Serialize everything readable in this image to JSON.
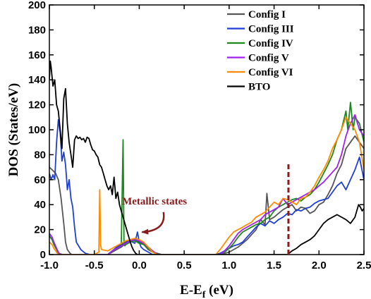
{
  "chart_data": {
    "type": "line",
    "xlabel_main": "E-E",
    "xlabel_sub": "f",
    "xlabel_unit": " (eV)",
    "ylabel": "DOS (States/eV)",
    "xlim": [
      -1.0,
      2.5
    ],
    "ylim": [
      0,
      200
    ],
    "xticks": [
      -1.0,
      -0.5,
      0.0,
      0.5,
      1.0,
      1.5,
      2.0,
      2.5
    ],
    "xtick_labels": [
      "-1.0",
      "-0.5",
      "0.0",
      "0.5",
      "1.0",
      "1.5",
      "2.0",
      "2.5"
    ],
    "yticks": [
      0,
      20,
      40,
      60,
      80,
      100,
      120,
      140,
      160,
      180,
      200
    ],
    "ytick_labels": [
      "0",
      "20",
      "40",
      "60",
      "80",
      "100",
      "120",
      "140",
      "160",
      "180",
      "200"
    ],
    "grid": false,
    "legend_position": "top-right",
    "vline": {
      "x": 1.66,
      "y_top": 74,
      "color": "#8b1a1a",
      "style": "dashed"
    },
    "annotation": {
      "text": "Metallic states",
      "color": "#8b1a1a",
      "text_x": 0.17,
      "text_y": 40,
      "arrow_from": [
        0.27,
        34
      ],
      "arrow_to": [
        0.03,
        18
      ]
    },
    "series": [
      {
        "name": "Config I",
        "color": "#555555",
        "x": [
          -1.0,
          -0.97,
          -0.93,
          -0.9,
          -0.87,
          -0.84,
          -0.82,
          -0.8,
          -0.77,
          -0.75,
          -0.5,
          -0.35,
          -0.3,
          -0.25,
          -0.2,
          -0.15,
          -0.1,
          -0.05,
          0.0,
          0.05,
          0.1,
          0.15,
          0.2,
          0.25,
          0.3,
          0.8,
          0.9,
          1.0,
          1.1,
          1.2,
          1.3,
          1.35,
          1.4,
          1.42,
          1.45,
          1.5,
          1.55,
          1.6,
          1.65,
          1.7,
          1.75,
          1.8,
          1.85,
          1.9,
          1.95,
          2.0,
          2.05,
          2.1,
          2.15,
          2.2,
          2.25,
          2.3,
          2.35,
          2.4,
          2.45,
          2.5
        ],
        "y": [
          70,
          68,
          65,
          60,
          45,
          25,
          10,
          4,
          1,
          0,
          0,
          0,
          2,
          4,
          6,
          9,
          11,
          12,
          10,
          8,
          4,
          2,
          1,
          0,
          0,
          0,
          0,
          2,
          6,
          12,
          20,
          28,
          24,
          49,
          28,
          30,
          33,
          36,
          38,
          40,
          35,
          38,
          37,
          33,
          35,
          40,
          42,
          48,
          55,
          65,
          72,
          85,
          90,
          95,
          90,
          85
        ]
      },
      {
        "name": "Config III",
        "color": "#1f3fd6",
        "x": [
          -1.0,
          -0.98,
          -0.96,
          -0.94,
          -0.92,
          -0.9,
          -0.88,
          -0.86,
          -0.84,
          -0.82,
          -0.8,
          -0.78,
          -0.76,
          -0.74,
          -0.72,
          -0.7,
          -0.65,
          -0.6,
          -0.55,
          -0.5,
          -0.35,
          -0.3,
          -0.25,
          -0.2,
          -0.15,
          -0.1,
          -0.05,
          -0.02,
          0.0,
          0.02,
          0.05,
          0.1,
          0.15,
          0.5,
          0.85,
          0.9,
          0.95,
          1.0,
          1.05,
          1.1,
          1.15,
          1.2,
          1.25,
          1.3,
          1.35,
          1.4,
          1.45,
          1.5,
          1.55,
          1.6,
          1.65,
          1.7,
          1.75,
          1.8,
          1.85,
          1.9,
          1.95,
          2.0,
          2.05,
          2.1,
          2.15,
          2.2,
          2.25,
          2.3,
          2.35,
          2.4,
          2.45,
          2.5
        ],
        "y": [
          65,
          60,
          64,
          60,
          90,
          108,
          98,
          75,
          82,
          72,
          52,
          60,
          45,
          38,
          22,
          10,
          4,
          1,
          0,
          0,
          0,
          3,
          6,
          8,
          10,
          11,
          9,
          18,
          10,
          6,
          4,
          2,
          0,
          0,
          0,
          1,
          3,
          5,
          7,
          8,
          10,
          14,
          18,
          22,
          25,
          23,
          27,
          25,
          28,
          30,
          33,
          32,
          36,
          35,
          37,
          38,
          41,
          43,
          44,
          45,
          50,
          55,
          58,
          52,
          60,
          68,
          78,
          60
        ]
      },
      {
        "name": "Config IV",
        "color": "#1a8a1a",
        "x": [
          -1.0,
          -0.97,
          -0.95,
          -0.92,
          -0.9,
          -0.85,
          -0.5,
          -0.35,
          -0.3,
          -0.25,
          -0.22,
          -0.2,
          -0.18,
          -0.17,
          -0.16,
          -0.15,
          -0.1,
          -0.05,
          0.0,
          0.05,
          0.1,
          0.15,
          0.2,
          0.9,
          0.95,
          1.0,
          1.05,
          1.1,
          1.15,
          1.2,
          1.25,
          1.3,
          1.35,
          1.4,
          1.45,
          1.5,
          1.55,
          1.6,
          1.65,
          1.7,
          1.75,
          1.8,
          1.85,
          1.9,
          1.95,
          2.0,
          2.05,
          2.1,
          2.15,
          2.2,
          2.25,
          2.3,
          2.32,
          2.35,
          2.38,
          2.4,
          2.45,
          2.5
        ],
        "y": [
          15,
          12,
          8,
          4,
          1,
          0,
          0,
          0,
          3,
          5,
          6,
          7,
          92,
          8,
          7,
          8,
          10,
          11,
          9,
          8,
          5,
          2,
          0,
          0,
          2,
          5,
          9,
          14,
          18,
          20,
          22,
          24,
          25,
          28,
          30,
          35,
          38,
          40,
          42,
          44,
          45,
          43,
          46,
          48,
          52,
          58,
          65,
          72,
          80,
          92,
          100,
          115,
          100,
          122,
          100,
          110,
          105,
          90
        ]
      },
      {
        "name": "Config V",
        "color": "#a020f0",
        "x": [
          -1.0,
          -0.97,
          -0.95,
          -0.92,
          -0.9,
          -0.88,
          -0.5,
          -0.35,
          -0.3,
          -0.25,
          -0.2,
          -0.15,
          -0.1,
          -0.05,
          0.0,
          0.05,
          0.1,
          0.15,
          0.2,
          0.9,
          0.95,
          1.0,
          1.05,
          1.1,
          1.15,
          1.2,
          1.25,
          1.3,
          1.35,
          1.4,
          1.45,
          1.5,
          1.55,
          1.6,
          1.65,
          1.7,
          1.75,
          1.8,
          1.85,
          1.9,
          1.95,
          2.0,
          2.05,
          2.1,
          2.15,
          2.2,
          2.25,
          2.3,
          2.35,
          2.4,
          2.45,
          2.5
        ],
        "y": [
          17,
          14,
          10,
          5,
          2,
          0,
          0,
          0,
          3,
          5,
          7,
          9,
          11,
          12,
          11,
          9,
          6,
          3,
          0,
          0,
          3,
          7,
          12,
          17,
          20,
          22,
          24,
          26,
          28,
          32,
          34,
          36,
          38,
          45,
          40,
          42,
          44,
          46,
          48,
          50,
          52,
          55,
          58,
          62,
          66,
          70,
          80,
          95,
          105,
          112,
          100,
          95
        ]
      },
      {
        "name": "Config VI",
        "color": "#ff8c00",
        "x": [
          -1.0,
          -0.97,
          -0.95,
          -0.92,
          -0.9,
          -0.5,
          -0.45,
          -0.44,
          -0.43,
          -0.42,
          -0.35,
          -0.3,
          -0.25,
          -0.2,
          -0.15,
          -0.1,
          -0.05,
          0.0,
          0.05,
          0.1,
          0.15,
          0.2,
          0.85,
          0.9,
          0.95,
          1.0,
          1.05,
          1.1,
          1.15,
          1.2,
          1.25,
          1.3,
          1.35,
          1.4,
          1.45,
          1.5,
          1.55,
          1.6,
          1.65,
          1.7,
          1.75,
          1.8,
          1.85,
          1.9,
          1.95,
          2.0,
          2.05,
          2.1,
          2.15,
          2.2,
          2.25,
          2.3,
          2.35,
          2.4,
          2.45,
          2.5
        ],
        "y": [
          10,
          8,
          5,
          2,
          0,
          0,
          2,
          52,
          8,
          4,
          3,
          5,
          7,
          9,
          11,
          12,
          13,
          12,
          10,
          6,
          2,
          0,
          0,
          4,
          9,
          14,
          18,
          20,
          22,
          24,
          26,
          30,
          32,
          34,
          38,
          42,
          40,
          45,
          44,
          42,
          40,
          45,
          46,
          50,
          55,
          62,
          68,
          75,
          85,
          92,
          100,
          110,
          105,
          100,
          90,
          68
        ]
      },
      {
        "name": "BTO",
        "color": "#000000",
        "x": [
          -1.0,
          -0.99,
          -0.98,
          -0.96,
          -0.94,
          -0.92,
          -0.9,
          -0.88,
          -0.86,
          -0.84,
          -0.82,
          -0.8,
          -0.78,
          -0.76,
          -0.74,
          -0.72,
          -0.7,
          -0.68,
          -0.66,
          -0.64,
          -0.62,
          -0.6,
          -0.58,
          -0.56,
          -0.54,
          -0.52,
          -0.5,
          -0.48,
          -0.46,
          -0.44,
          -0.42,
          -0.4,
          -0.38,
          -0.36,
          -0.34,
          -0.32,
          -0.3,
          -0.28,
          -0.26,
          -0.24,
          -0.22,
          -0.2,
          -0.18,
          -0.16,
          -0.14,
          -0.12,
          -0.1,
          -0.08,
          -0.06,
          -0.04,
          -0.02,
          0.0,
          0.05,
          0.1,
          0.15,
          0.2,
          1.65,
          1.7,
          1.75,
          1.8,
          1.85,
          1.9,
          1.95,
          2.0,
          2.05,
          2.1,
          2.15,
          2.2,
          2.25,
          2.3,
          2.35,
          2.4,
          2.42,
          2.44,
          2.46,
          2.48,
          2.5
        ],
        "y": [
          140,
          155,
          150,
          135,
          140,
          120,
          115,
          100,
          85,
          125,
          133,
          105,
          90,
          80,
          70,
          92,
          95,
          93,
          94,
          92,
          93,
          90,
          94,
          93,
          88,
          84,
          83,
          80,
          78,
          72,
          70,
          65,
          60,
          55,
          52,
          55,
          48,
          62,
          45,
          50,
          40,
          35,
          30,
          25,
          20,
          15,
          10,
          6,
          3,
          1,
          0,
          0,
          0,
          0,
          0,
          0,
          0,
          3,
          5,
          8,
          10,
          12,
          15,
          20,
          25,
          28,
          30,
          32,
          30,
          28,
          25,
          30,
          35,
          40,
          38,
          35,
          37
        ]
      }
    ]
  }
}
